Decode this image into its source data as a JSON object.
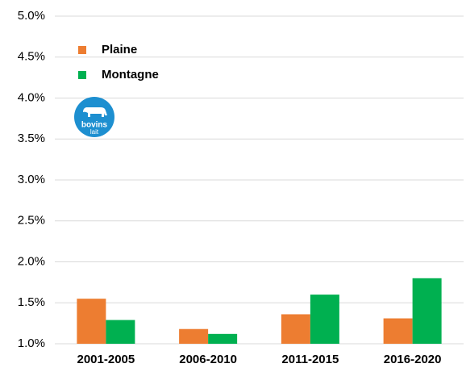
{
  "chart_data": {
    "type": "bar",
    "categories": [
      "2001-2005",
      "2006-2010",
      "2011-2015",
      "2016-2020"
    ],
    "series": [
      {
        "name": "Plaine",
        "color": "#ed7d31",
        "values": [
          1.55,
          1.18,
          1.36,
          1.31
        ]
      },
      {
        "name": "Montagne",
        "color": "#00b050",
        "values": [
          1.29,
          1.12,
          1.6,
          1.8
        ]
      }
    ],
    "ylim": [
      1.0,
      5.0
    ],
    "yticks": [
      {
        "value": 1.0,
        "label": "1.0%"
      },
      {
        "value": 1.5,
        "label": "1.5%"
      },
      {
        "value": 2.0,
        "label": "2.0%"
      },
      {
        "value": 2.5,
        "label": "2.5%"
      },
      {
        "value": 3.0,
        "label": "3.0%"
      },
      {
        "value": 3.5,
        "label": "3.5%"
      },
      {
        "value": 4.0,
        "label": "4.0%"
      },
      {
        "value": 4.5,
        "label": "4.5%"
      },
      {
        "value": 5.0,
        "label": "5.0%"
      }
    ],
    "grid": true,
    "legend": "top-left",
    "logo": {
      "line1": "bovins",
      "line2": "lait"
    }
  }
}
